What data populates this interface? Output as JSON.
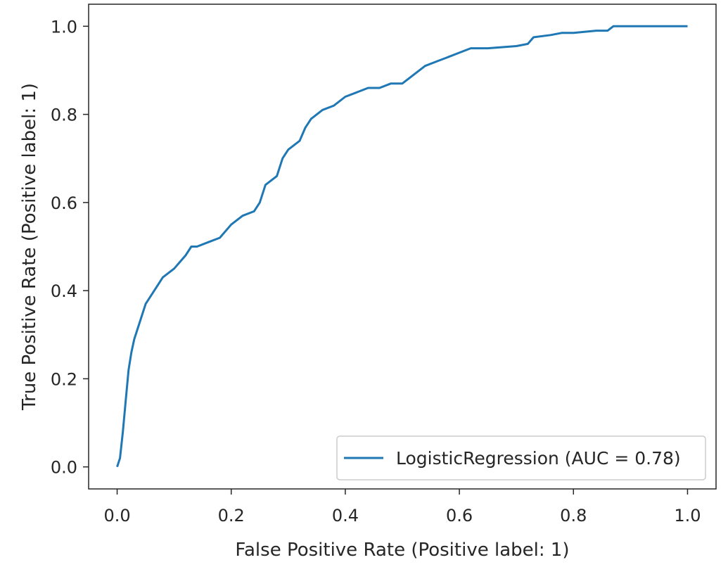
{
  "chart_data": {
    "type": "line",
    "xlabel": "False Positive Rate (Positive label: 1)",
    "ylabel": "True Positive Rate (Positive label: 1)",
    "xlim": [
      -0.05,
      1.05
    ],
    "ylim": [
      -0.05,
      1.05
    ],
    "xticks": [
      "0.0",
      "0.2",
      "0.4",
      "0.6",
      "0.8",
      "1.0"
    ],
    "yticks": [
      "0.0",
      "0.2",
      "0.4",
      "0.6",
      "0.8",
      "1.0"
    ],
    "grid": false,
    "legend_position": "lower-right",
    "series": [
      {
        "name": "LogisticRegression (AUC = 0.78)",
        "color": "#1f77b4",
        "x": [
          0.0,
          0.005,
          0.01,
          0.015,
          0.02,
          0.025,
          0.03,
          0.04,
          0.05,
          0.06,
          0.07,
          0.08,
          0.09,
          0.1,
          0.12,
          0.13,
          0.14,
          0.16,
          0.18,
          0.2,
          0.22,
          0.24,
          0.25,
          0.26,
          0.28,
          0.29,
          0.3,
          0.32,
          0.33,
          0.34,
          0.36,
          0.38,
          0.4,
          0.42,
          0.44,
          0.46,
          0.48,
          0.5,
          0.52,
          0.54,
          0.56,
          0.58,
          0.6,
          0.62,
          0.65,
          0.7,
          0.72,
          0.73,
          0.76,
          0.78,
          0.8,
          0.84,
          0.86,
          0.87,
          0.9,
          0.95,
          0.98,
          1.0
        ],
        "y": [
          0.0,
          0.02,
          0.08,
          0.15,
          0.22,
          0.26,
          0.29,
          0.33,
          0.37,
          0.39,
          0.41,
          0.43,
          0.44,
          0.45,
          0.48,
          0.5,
          0.5,
          0.51,
          0.52,
          0.55,
          0.57,
          0.58,
          0.6,
          0.64,
          0.66,
          0.7,
          0.72,
          0.74,
          0.77,
          0.79,
          0.81,
          0.82,
          0.84,
          0.85,
          0.86,
          0.86,
          0.87,
          0.87,
          0.89,
          0.91,
          0.92,
          0.93,
          0.94,
          0.95,
          0.95,
          0.955,
          0.96,
          0.975,
          0.98,
          0.985,
          0.985,
          0.99,
          0.99,
          1.0,
          1.0,
          1.0,
          1.0,
          1.0
        ]
      }
    ]
  }
}
